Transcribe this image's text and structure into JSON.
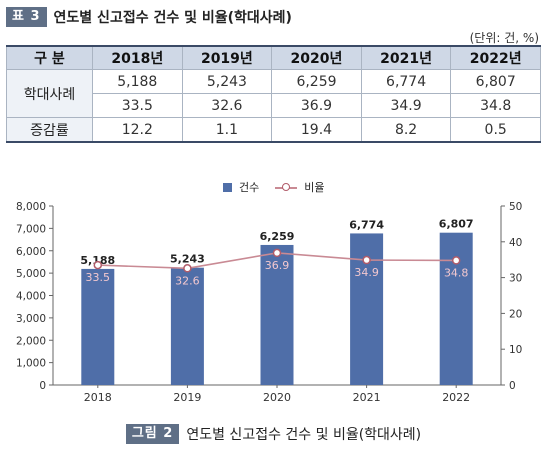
{
  "table": {
    "caption_badge": "표 3",
    "caption_title": "연도별 신고접수 건수 및 비율(학대사례)",
    "unit": "(단위: 건, %)",
    "header_label": "구 분",
    "years": [
      "2018년",
      "2019년",
      "2020년",
      "2021년",
      "2022년"
    ],
    "row_group_label": "학대사례",
    "counts": [
      "5,188",
      "5,243",
      "6,259",
      "6,774",
      "6,807"
    ],
    "ratios": [
      "33.5",
      "32.6",
      "36.9",
      "34.9",
      "34.8"
    ],
    "growth_label": "증감률",
    "growth": [
      "12.2",
      "1.1",
      "19.4",
      "8.2",
      "0.5"
    ]
  },
  "figure": {
    "caption_badge": "그림 2",
    "caption_title": "연도별 신고접수 건수 및 비율(학대사례)"
  },
  "chart_data": {
    "type": "bar",
    "categories": [
      "2018",
      "2019",
      "2020",
      "2021",
      "2022"
    ],
    "series": [
      {
        "name": "건수",
        "type": "bar",
        "axis": "left",
        "values": [
          5188,
          5243,
          6259,
          6774,
          6807
        ],
        "labels": [
          "5,188",
          "5,243",
          "6,259",
          "6,774",
          "6,807"
        ],
        "color": "#4f6ea8"
      },
      {
        "name": "비율",
        "type": "line",
        "axis": "right",
        "values": [
          33.5,
          32.6,
          36.9,
          34.9,
          34.8
        ],
        "labels": [
          "33.5",
          "32.6",
          "36.9",
          "34.9",
          "34.8"
        ],
        "color": "#c98a94"
      }
    ],
    "ylim": [
      0,
      8000
    ],
    "y_ticks": [
      "0",
      "1,000",
      "2,000",
      "3,000",
      "4,000",
      "5,000",
      "6,000",
      "7,000",
      "8,000"
    ],
    "y2lim": [
      0,
      50
    ],
    "y2_ticks": [
      "0",
      "10",
      "20",
      "30",
      "40",
      "50"
    ],
    "legend_position": "top-center",
    "grid": false
  }
}
